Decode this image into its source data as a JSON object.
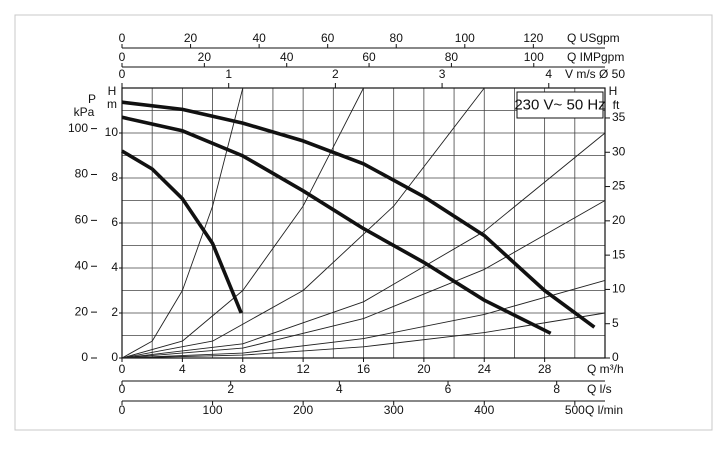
{
  "chart_data": {
    "type": "line",
    "annotation": "230 V~ 50 Hz",
    "x_label": "Q m³/h",
    "xlim": [
      0,
      32
    ],
    "xticks": [
      0,
      4,
      8,
      12,
      16,
      20,
      24,
      28
    ],
    "y_label": "H",
    "y_unit": "m",
    "ylim": [
      0,
      12
    ],
    "yticks": [
      0,
      2,
      4,
      6,
      8,
      10
    ],
    "xgrid": [
      0,
      2,
      4,
      6,
      8,
      10,
      12,
      14,
      16,
      18,
      20,
      22,
      24,
      26,
      28,
      30,
      32
    ],
    "ygrid": [
      0,
      1,
      2,
      3,
      4,
      5,
      6,
      7,
      8,
      9,
      10,
      11,
      12
    ],
    "secondary_axes": [
      {
        "position": "left",
        "label": "P",
        "unit": "kPa",
        "lim": [
          0,
          117.7
        ],
        "ticks": [
          0,
          20,
          40,
          60,
          80,
          100
        ]
      },
      {
        "position": "right",
        "label": "H",
        "unit": "ft",
        "lim": [
          0,
          39.37
        ],
        "ticks": [
          0,
          5,
          10,
          15,
          20,
          25,
          30,
          35
        ]
      },
      {
        "position": "top",
        "label": "Q USgpm",
        "lim": [
          0,
          140.9
        ],
        "ticks": [
          0,
          20,
          40,
          60,
          80,
          100,
          120
        ]
      },
      {
        "position": "top",
        "label": "Q IMPgpm",
        "lim": [
          0,
          117.3
        ],
        "ticks": [
          0,
          20,
          40,
          60,
          80,
          100
        ]
      },
      {
        "position": "top",
        "label": "V m/s Ø 50",
        "lim": [
          0,
          4.527
        ],
        "ticks": [
          0,
          1,
          2,
          3,
          4
        ]
      },
      {
        "position": "bottom",
        "label": "Q l/s",
        "lim": [
          0,
          8.889
        ],
        "ticks": [
          0,
          2,
          4,
          6,
          8
        ]
      },
      {
        "position": "bottom",
        "label": "Q l/min",
        "lim": [
          0,
          533.3
        ],
        "ticks": [
          0,
          100,
          200,
          300,
          400,
          500
        ]
      }
    ],
    "series": [
      {
        "color": "#111111",
        "x": [
          0,
          4,
          8,
          12,
          16,
          20,
          24,
          28,
          31.3
        ],
        "values": [
          11.37,
          11.05,
          10.44,
          9.65,
          8.63,
          7.17,
          5.44,
          3.0,
          1.37
        ]
      },
      {
        "color": "#111111",
        "x": [
          0,
          4,
          8,
          12,
          16,
          20,
          24,
          28.4
        ],
        "values": [
          10.7,
          10.1,
          8.98,
          7.43,
          5.75,
          4.25,
          2.57,
          1.1
        ]
      },
      {
        "color": "#111111",
        "x": [
          0,
          2,
          4,
          6,
          7.9
        ],
        "values": [
          9.2,
          8.4,
          7.08,
          5.09,
          2.0
        ]
      }
    ],
    "system_curves": [
      {
        "color": "#222222",
        "x": [
          0,
          2,
          4,
          6,
          8
        ],
        "values": [
          0,
          0.75,
          3,
          6.75,
          12
        ]
      },
      {
        "color": "#222222",
        "x": [
          0,
          4,
          8,
          12,
          16
        ],
        "values": [
          0,
          0.75,
          3,
          6.75,
          12
        ]
      },
      {
        "color": "#222222",
        "x": [
          0,
          6,
          12,
          18,
          24
        ],
        "values": [
          0,
          0.75,
          3,
          6.75,
          12
        ]
      },
      {
        "color": "#222222",
        "x": [
          0,
          8,
          16,
          24,
          32
        ],
        "values": [
          0,
          0.63,
          2.5,
          5.63,
          10
        ]
      },
      {
        "color": "#222222",
        "x": [
          0,
          8,
          16,
          24,
          32
        ],
        "values": [
          0,
          0.44,
          1.75,
          3.94,
          7
        ]
      },
      {
        "color": "#222222",
        "x": [
          0,
          8,
          16,
          24,
          32
        ],
        "values": [
          0,
          0.22,
          0.86,
          1.94,
          3.45
        ]
      },
      {
        "color": "#222222",
        "x": [
          0,
          8,
          16,
          24,
          32
        ],
        "values": [
          0,
          0.13,
          0.5,
          1.13,
          2.0
        ]
      }
    ]
  }
}
